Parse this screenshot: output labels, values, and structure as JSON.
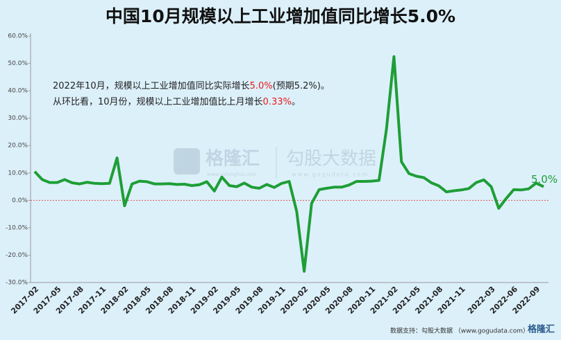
{
  "chart_data": {
    "type": "line",
    "title": "中国10月规模以上工业增加值同比增长5.0%",
    "categories": [
      "2017-02",
      null,
      null,
      "2017-05",
      null,
      null,
      "2017-08",
      null,
      null,
      "2017-11",
      null,
      null,
      "2018-02",
      null,
      null,
      "2018-05",
      null,
      null,
      "2018-08",
      null,
      null,
      "2018-11",
      null,
      null,
      "2019-02",
      null,
      null,
      "2019-05",
      null,
      null,
      "2019-08",
      null,
      null,
      "2019-11",
      null,
      null,
      "2020-02",
      null,
      null,
      "2020-05",
      null,
      null,
      "2020-08",
      null,
      null,
      "2020-11",
      null,
      null,
      "2021-02",
      null,
      null,
      "2021-05",
      null,
      null,
      "2021-08",
      null,
      null,
      "2021-11",
      null,
      null,
      null,
      "2022-03",
      null,
      null,
      "2022-06",
      null,
      null,
      "2022-09",
      null
    ],
    "series": [
      {
        "name": "规模以上工业增加值同比",
        "color": "#1e9e36",
        "values": [
          10.5,
          7.6,
          6.5,
          6.5,
          7.6,
          6.4,
          6.0,
          6.6,
          6.2,
          6.1,
          6.2,
          15.5,
          -2.0,
          6.0,
          7.0,
          6.8,
          6.0,
          6.0,
          6.1,
          5.8,
          5.9,
          5.4,
          5.7,
          6.8,
          3.4,
          8.5,
          5.4,
          5.0,
          6.3,
          4.8,
          4.4,
          5.8,
          4.7,
          6.2,
          6.9,
          -4.0,
          -25.9,
          -1.1,
          3.9,
          4.4,
          4.8,
          4.8,
          5.6,
          6.9,
          6.9,
          7.0,
          7.3,
          26.0,
          52.5,
          14.1,
          9.8,
          8.8,
          8.3,
          6.4,
          5.3,
          3.1,
          3.5,
          3.8,
          4.3,
          6.5,
          7.5,
          5.0,
          -2.9,
          0.7,
          3.9,
          3.8,
          4.2,
          6.3,
          5.0
        ]
      }
    ],
    "end_label": "5.0%",
    "ylim": [
      -30,
      60
    ],
    "yticks": [
      {
        "value": -30,
        "label": "-30.0%"
      },
      {
        "value": -20,
        "label": "-20.0%"
      },
      {
        "value": -10,
        "label": "-10.0%"
      },
      {
        "value": 0,
        "label": "0.0%"
      },
      {
        "value": 10,
        "label": "10.0%"
      },
      {
        "value": 20,
        "label": "20.0%"
      },
      {
        "value": 30,
        "label": "30.0%"
      },
      {
        "value": 40,
        "label": "40.0%"
      },
      {
        "value": 50,
        "label": "50.0%"
      },
      {
        "value": 60,
        "label": "60.0%"
      }
    ],
    "reference_line": {
      "value": 0,
      "color": "#e05050"
    },
    "highlight_color": "#e8191a",
    "annotations": [
      [
        "2022年10月，规模以上工业增加值同比实际增长",
        "5.0%",
        "(预期5.2%)。"
      ],
      [
        "从环比看，10月份，规模以上工业增加值比上月增长",
        "0.33%",
        "。"
      ]
    ],
    "watermark": [
      "格隆汇",
      "www.gelonghui.com",
      "勾股大数据",
      "www.gogudata.com"
    ],
    "source": "数据支持：勾股大数据 （www.gogudata.com）",
    "logo": "格隆汇"
  }
}
